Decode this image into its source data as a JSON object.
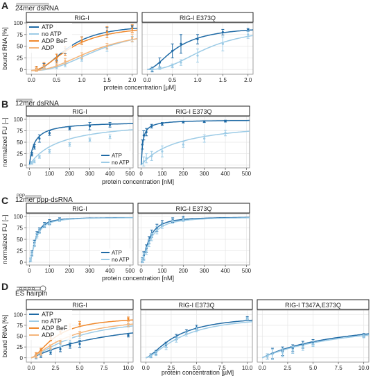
{
  "colors": {
    "atp": "#1f6aa5",
    "no_atp": "#9ccbe6",
    "adp_befx": "#f0882b",
    "adp": "#f5b57a",
    "strip_fill": "#ffffff",
    "grid": "#e6e6e6",
    "frame": "#888888"
  },
  "panels": [
    {
      "letter": "A",
      "substrate": "24mer dsRNA",
      "xlabel": "protein concentration [µM]",
      "ylabel": "bound RNA [%]"
    },
    {
      "letter": "B",
      "substrate": "12mer dsRNA",
      "xlabel": "protein concentration [nM]",
      "ylabel": "normalized FU [–]"
    },
    {
      "letter": "C",
      "substrate": "12mer ppp-dsRNA",
      "substrate_tag": "PPP",
      "xlabel": "protein concentration [nM]",
      "ylabel": "normalized FU [–]"
    },
    {
      "letter": "D",
      "substrate": "ES hairpin",
      "xlabel": "protein concentration [µM]",
      "ylabel": "bound RNA [%]"
    }
  ],
  "chart_data": [
    {
      "panel": "A",
      "type": "line",
      "facets": [
        "RIG-I",
        "RIG-I E373Q"
      ],
      "legend": [
        "ATP",
        "no ATP",
        "ADP BeF",
        "ADP"
      ],
      "xlim": [
        -0.1,
        2.1
      ],
      "ylim": [
        -10,
        100
      ],
      "xticks": [
        0.0,
        0.5,
        1.0,
        1.5,
        2.0
      ],
      "xtick_labels": [
        "0.0",
        "0.5",
        "1.0",
        "1.5",
        "2.0"
      ],
      "yticks": [
        0,
        25,
        50,
        75,
        100
      ],
      "ytick_labels": [
        "0",
        "25",
        "50",
        "75",
        "100"
      ],
      "series": [
        {
          "facet": 0,
          "name": "ATP",
          "color": "atp",
          "x": [
            0.1,
            0.25,
            0.5,
            0.67,
            1.0,
            1.5,
            2.0
          ],
          "y": [
            2,
            8,
            20,
            40,
            62,
            82,
            92
          ],
          "err": [
            5,
            5,
            6,
            6,
            8,
            8,
            3
          ]
        },
        {
          "facet": 0,
          "name": "no ATP",
          "color": "no_atp",
          "x": [
            0.1,
            0.25,
            0.5,
            0.67,
            1.0,
            1.5,
            2.0
          ],
          "y": [
            0,
            3,
            5,
            10,
            22,
            45,
            65
          ],
          "err": [
            3,
            3,
            3,
            4,
            4,
            6,
            6
          ]
        },
        {
          "facet": 0,
          "name": "ADP BeF",
          "color": "adp_befx",
          "x": [
            0.1,
            0.25,
            0.5,
            0.67,
            1.0,
            1.5,
            2.0
          ],
          "y": [
            2,
            10,
            25,
            40,
            62,
            80,
            88
          ],
          "err": [
            5,
            5,
            8,
            10,
            8,
            12,
            8
          ]
        },
        {
          "facet": 0,
          "name": "ADP",
          "color": "adp",
          "x": [
            0.1,
            0.25,
            0.5,
            0.67,
            1.0,
            1.5,
            2.0
          ],
          "y": [
            0,
            5,
            10,
            18,
            30,
            50,
            68
          ],
          "err": [
            4,
            4,
            4,
            6,
            6,
            6,
            8
          ]
        },
        {
          "facet": 1,
          "name": "ATP",
          "color": "atp",
          "x": [
            0.1,
            0.25,
            0.5,
            0.67,
            1.0,
            1.5,
            2.0
          ],
          "y": [
            0,
            15,
            40,
            55,
            65,
            80,
            85
          ],
          "err": [
            5,
            10,
            15,
            20,
            10,
            6,
            3
          ]
        },
        {
          "facet": 1,
          "name": "no ATP",
          "color": "no_atp",
          "x": [
            0.1,
            0.25,
            0.5,
            0.67,
            1.0,
            1.5,
            2.0
          ],
          "y": [
            0,
            3,
            8,
            15,
            30,
            55,
            75
          ],
          "err": [
            3,
            3,
            4,
            6,
            14,
            15,
            8
          ]
        }
      ],
      "fits": [
        {
          "facet": 0,
          "color": "atp",
          "kd": 0.75,
          "n": 2.2,
          "top": 98,
          "base": -2
        },
        {
          "facet": 0,
          "color": "no_atp",
          "kd": 1.4,
          "n": 2.4,
          "top": 92,
          "base": -2
        },
        {
          "facet": 0,
          "color": "adp_befx",
          "kd": 0.8,
          "n": 2.0,
          "top": 97,
          "base": -2
        },
        {
          "facet": 0,
          "color": "adp",
          "kd": 1.3,
          "n": 2.2,
          "top": 90,
          "base": -2
        },
        {
          "facet": 1,
          "color": "atp",
          "kd": 0.6,
          "n": 1.8,
          "top": 94,
          "base": 0
        },
        {
          "facet": 1,
          "color": "no_atp",
          "kd": 1.2,
          "n": 2.4,
          "top": 92,
          "base": 0
        }
      ]
    },
    {
      "panel": "B",
      "type": "line",
      "facets": [
        "RIG-I",
        "RIG-I E373Q"
      ],
      "legend": [
        "ATP",
        "no ATP"
      ],
      "legend_position": "bottom-right",
      "xlim": [
        -15,
        515
      ],
      "ylim": [
        -6,
        106
      ],
      "xticks": [
        0,
        100,
        200,
        300,
        400,
        500
      ],
      "xtick_labels": [
        "0",
        "100",
        "200",
        "300",
        "400",
        "500"
      ],
      "yticks": [
        0,
        25,
        50,
        75,
        100
      ],
      "ytick_labels": [
        "0",
        "25",
        "50",
        "75",
        "100"
      ],
      "series": [
        {
          "facet": 0,
          "name": "ATP",
          "color": "atp",
          "x": [
            12.5,
            25,
            50,
            100,
            200,
            300,
            400
          ],
          "y": [
            24,
            40,
            58,
            70,
            80,
            85,
            88
          ],
          "err": [
            4,
            5,
            8,
            5,
            3,
            8,
            5
          ]
        },
        {
          "facet": 0,
          "name": "no ATP",
          "color": "no_atp",
          "x": [
            12.5,
            25,
            50,
            100,
            200,
            300,
            400
          ],
          "y": [
            5,
            8,
            18,
            30,
            45,
            55,
            62
          ],
          "err": [
            3,
            3,
            3,
            4,
            4,
            4,
            4
          ]
        },
        {
          "facet": 1,
          "name": "ATP",
          "color": "atp",
          "x": [
            6,
            12.5,
            25,
            50,
            100,
            200,
            300,
            400
          ],
          "y": [
            45,
            65,
            72,
            85,
            90,
            94,
            95,
            96
          ],
          "err": [
            10,
            10,
            8,
            4,
            3,
            2,
            2,
            2
          ]
        },
        {
          "facet": 1,
          "name": "no ATP",
          "color": "no_atp",
          "x": [
            12.5,
            25,
            50,
            100,
            200,
            300,
            400
          ],
          "y": [
            8,
            15,
            20,
            30,
            45,
            58,
            70
          ],
          "err": [
            10,
            10,
            10,
            12,
            6,
            8,
            6
          ]
        }
      ],
      "fits": [
        {
          "facet": 0,
          "color": "atp",
          "kd": 25,
          "n": 1.0,
          "top": 95,
          "base": 0
        },
        {
          "facet": 0,
          "color": "no_atp",
          "kd": 150,
          "n": 1.0,
          "top": 100,
          "base": 0
        },
        {
          "facet": 1,
          "color": "atp",
          "kd": 8,
          "n": 1.0,
          "top": 99,
          "base": 0
        },
        {
          "facet": 1,
          "color": "no_atp",
          "kd": 180,
          "n": 1.0,
          "top": 100,
          "base": 0
        }
      ]
    },
    {
      "panel": "C",
      "type": "line",
      "facets": [
        "RIG-I",
        "RIG-I E373Q"
      ],
      "legend": [
        "ATP",
        "no ATP"
      ],
      "legend_position": "bottom-right",
      "xlim": [
        -15,
        515
      ],
      "ylim": [
        -6,
        106
      ],
      "xticks": [
        0,
        100,
        200,
        300,
        400,
        500
      ],
      "xtick_labels": [
        "0",
        "100",
        "200",
        "300",
        "400",
        "500"
      ],
      "yticks": [
        0,
        25,
        50,
        75,
        100
      ],
      "ytick_labels": [
        "0",
        "25",
        "50",
        "75",
        "100"
      ],
      "series": [
        {
          "facet": 0,
          "name": "ATP",
          "color": "atp",
          "x": [
            6,
            12.5,
            25,
            37.5,
            50,
            75,
            100,
            150
          ],
          "y": [
            5,
            20,
            42,
            62,
            70,
            82,
            88,
            94
          ],
          "err": [
            4,
            5,
            6,
            5,
            5,
            5,
            5,
            3
          ]
        },
        {
          "facet": 0,
          "name": "no ATP",
          "color": "no_atp",
          "x": [
            6,
            12.5,
            25,
            37.5,
            50,
            75,
            100,
            150
          ],
          "y": [
            5,
            18,
            40,
            58,
            68,
            80,
            86,
            92
          ],
          "err": [
            4,
            5,
            6,
            5,
            5,
            5,
            5,
            3
          ]
        },
        {
          "facet": 1,
          "name": "ATP",
          "color": "atp",
          "x": [
            6,
            12.5,
            25,
            37.5,
            50,
            75,
            100,
            150,
            200
          ],
          "y": [
            5,
            15,
            30,
            48,
            62,
            75,
            85,
            92,
            96
          ],
          "err": [
            5,
            8,
            8,
            8,
            8,
            8,
            6,
            5,
            4
          ]
        },
        {
          "facet": 1,
          "name": "no ATP",
          "color": "no_atp",
          "x": [
            6,
            12.5,
            25,
            37.5,
            50,
            75,
            100,
            150,
            200
          ],
          "y": [
            4,
            12,
            25,
            42,
            55,
            70,
            80,
            90,
            93
          ],
          "err": [
            5,
            8,
            8,
            8,
            8,
            8,
            6,
            5,
            4
          ]
        }
      ],
      "fits": [
        {
          "facet": 0,
          "color": "atp",
          "kd": 30,
          "n": 1.8,
          "top": 98,
          "base": 0
        },
        {
          "facet": 0,
          "color": "no_atp",
          "kd": 32,
          "n": 1.7,
          "top": 98,
          "base": 0
        },
        {
          "facet": 1,
          "color": "atp",
          "kd": 38,
          "n": 1.7,
          "top": 99,
          "base": 0
        },
        {
          "facet": 1,
          "color": "no_atp",
          "kd": 44,
          "n": 1.6,
          "top": 99,
          "base": 0
        }
      ]
    },
    {
      "panel": "D",
      "type": "line",
      "facets": [
        "RIG-I",
        "RIG-I E373Q",
        "RIG-I T347A,E373Q"
      ],
      "legend": [
        "ATP",
        "no ATP",
        "ADP BeF",
        "ADP"
      ],
      "xlim": [
        -0.5,
        10.5
      ],
      "ylim": [
        -10,
        110
      ],
      "xticks": [
        0.0,
        2.5,
        5.0,
        7.5,
        10.0
      ],
      "xtick_labels": [
        "0.0",
        "2.5",
        "5.0",
        "7.5",
        "10.0"
      ],
      "yticks": [
        0,
        25,
        50,
        75,
        100
      ],
      "ytick_labels": [
        "0",
        "25",
        "50",
        "75",
        "100"
      ],
      "series": [
        {
          "facet": 0,
          "name": "ATP",
          "color": "atp",
          "x": [
            0.5,
            1,
            2,
            3,
            4,
            5,
            10
          ],
          "y": [
            2,
            5,
            12,
            20,
            28,
            32,
            52
          ],
          "err": [
            4,
            4,
            4,
            6,
            6,
            8,
            4
          ]
        },
        {
          "facet": 0,
          "name": "no ATP",
          "color": "no_atp",
          "x": [
            0.5,
            1,
            2,
            3,
            4,
            5,
            10
          ],
          "y": [
            3,
            8,
            20,
            32,
            42,
            50,
            75
          ],
          "err": [
            4,
            4,
            5,
            6,
            6,
            6,
            4
          ]
        },
        {
          "facet": 0,
          "name": "ADP BeF",
          "color": "adp_befx",
          "x": [
            0.5,
            1,
            2,
            3,
            4,
            5,
            10
          ],
          "y": [
            8,
            18,
            45,
            60,
            72,
            78,
            90
          ],
          "err": [
            4,
            4,
            6,
            6,
            6,
            6,
            4
          ]
        },
        {
          "facet": 0,
          "name": "ADP",
          "color": "adp",
          "x": [
            0.5,
            1,
            2,
            3,
            4,
            5,
            10
          ],
          "y": [
            4,
            10,
            25,
            38,
            48,
            55,
            78
          ],
          "err": [
            4,
            4,
            5,
            6,
            6,
            6,
            6
          ]
        },
        {
          "facet": 1,
          "name": "ATP",
          "color": "atp",
          "x": [
            0.5,
            1,
            2,
            3,
            4,
            5,
            10
          ],
          "y": [
            5,
            12,
            30,
            48,
            60,
            70,
            92
          ],
          "err": [
            4,
            5,
            6,
            6,
            5,
            5,
            3
          ]
        },
        {
          "facet": 1,
          "name": "no ATP",
          "color": "no_atp",
          "x": [
            0.5,
            1,
            2,
            3,
            4,
            5,
            10
          ],
          "y": [
            4,
            10,
            25,
            42,
            55,
            65,
            90
          ],
          "err": [
            4,
            5,
            6,
            6,
            5,
            5,
            3
          ]
        },
        {
          "facet": 2,
          "name": "ATP",
          "color": "atp",
          "x": [
            0.5,
            1,
            2,
            3,
            4,
            5,
            10
          ],
          "y": [
            3,
            10,
            15,
            22,
            30,
            36,
            52
          ],
          "err": [
            6,
            12,
            10,
            8,
            8,
            6,
            4
          ]
        },
        {
          "facet": 2,
          "name": "no ATP",
          "color": "no_atp",
          "x": [
            0.5,
            1,
            2,
            3,
            4,
            5,
            10
          ],
          "y": [
            3,
            8,
            12,
            18,
            25,
            32,
            50
          ],
          "err": [
            6,
            12,
            10,
            8,
            8,
            6,
            4
          ]
        }
      ],
      "fits": [
        {
          "facet": 0,
          "color": "atp",
          "kd": 8,
          "n": 1.1,
          "top": 100,
          "base": 0
        },
        {
          "facet": 0,
          "color": "no_atp",
          "kd": 4.8,
          "n": 1.3,
          "top": 100,
          "base": 0
        },
        {
          "facet": 0,
          "color": "adp_befx",
          "kd": 2.5,
          "n": 1.6,
          "top": 96,
          "base": 0
        },
        {
          "facet": 0,
          "color": "adp",
          "kd": 4.0,
          "n": 1.3,
          "top": 100,
          "base": 0
        },
        {
          "facet": 1,
          "color": "atp",
          "kd": 3.0,
          "n": 1.5,
          "top": 100,
          "base": 0
        },
        {
          "facet": 1,
          "color": "no_atp",
          "kd": 3.6,
          "n": 1.5,
          "top": 100,
          "base": 0
        },
        {
          "facet": 2,
          "color": "atp",
          "kd": 8.5,
          "n": 1.0,
          "top": 100,
          "base": 0
        },
        {
          "facet": 2,
          "color": "no_atp",
          "kd": 9.5,
          "n": 1.0,
          "top": 100,
          "base": 0
        }
      ]
    }
  ]
}
